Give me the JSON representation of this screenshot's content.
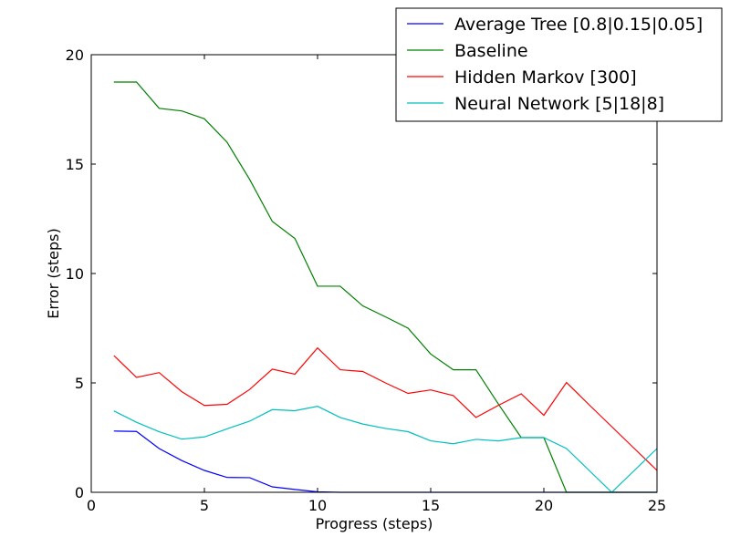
{
  "chart_data": {
    "type": "line",
    "xlabel": "Progress (steps)",
    "ylabel": "Error (steps)",
    "xlim": [
      0,
      25
    ],
    "ylim": [
      0,
      20
    ],
    "xticks": [
      0,
      5,
      10,
      15,
      20,
      25
    ],
    "yticks": [
      0,
      5,
      10,
      15,
      20
    ],
    "grid": false,
    "legend_position": "top-right",
    "series": [
      {
        "name": "Average Tree [0.8|0.15|0.05]",
        "color": "#0000ff",
        "x": [
          1,
          2,
          3,
          4,
          5,
          6,
          7,
          8,
          9,
          10,
          11,
          12,
          13,
          14,
          15,
          16,
          17,
          18,
          19,
          20,
          21,
          22,
          23,
          24,
          25
        ],
        "values": [
          2.8,
          2.78,
          2.0,
          1.45,
          1.0,
          0.68,
          0.67,
          0.25,
          0.13,
          0.02,
          0,
          0,
          0,
          0,
          0,
          0,
          0,
          0,
          0,
          0,
          0,
          0,
          0,
          0,
          0
        ]
      },
      {
        "name": "Baseline",
        "color": "#008000",
        "x": [
          1,
          2,
          3,
          4,
          5,
          6,
          7,
          8,
          9,
          10,
          11,
          12,
          13,
          14,
          15,
          16,
          17,
          18,
          19,
          20,
          21,
          22,
          23,
          24,
          25
        ],
        "values": [
          18.75,
          18.75,
          17.55,
          17.43,
          17.07,
          16.0,
          14.3,
          12.38,
          11.6,
          9.42,
          9.42,
          8.52,
          8.02,
          7.5,
          6.32,
          5.6,
          5.6,
          4.02,
          2.5,
          2.5,
          0,
          0,
          0,
          0,
          0
        ]
      },
      {
        "name": "Hidden Markov [300]",
        "color": "#ff0000",
        "x": [
          1,
          2,
          3,
          4,
          5,
          6,
          7,
          8,
          9,
          10,
          11,
          12,
          13,
          14,
          15,
          16,
          17,
          18,
          19,
          20,
          21,
          22,
          23,
          24,
          25
        ],
        "values": [
          6.25,
          5.25,
          5.47,
          4.6,
          3.97,
          4.02,
          4.7,
          5.63,
          5.4,
          6.6,
          5.6,
          5.52,
          5.0,
          4.52,
          4.68,
          4.42,
          3.42,
          3.98,
          4.5,
          3.52,
          5.02,
          4.0,
          3.0,
          2.0,
          1.0
        ]
      },
      {
        "name": "Neural Network [5|18|8]",
        "color": "#00bfbf",
        "x": [
          1,
          2,
          3,
          4,
          5,
          6,
          7,
          8,
          9,
          10,
          11,
          12,
          13,
          14,
          15,
          16,
          17,
          18,
          19,
          20,
          21,
          22,
          23,
          24,
          25
        ],
        "values": [
          3.72,
          3.2,
          2.77,
          2.43,
          2.53,
          2.9,
          3.25,
          3.78,
          3.73,
          3.93,
          3.42,
          3.12,
          2.92,
          2.77,
          2.35,
          2.22,
          2.42,
          2.35,
          2.5,
          2.5,
          2.0,
          1.0,
          0.0,
          1.0,
          2.0
        ]
      }
    ]
  }
}
